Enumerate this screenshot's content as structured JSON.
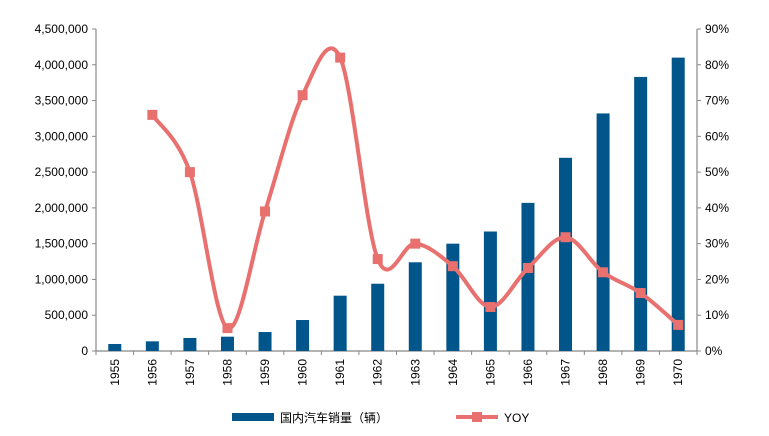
{
  "chart_data": {
    "type": "bar+line",
    "title": "",
    "categories": [
      "1955",
      "1956",
      "1957",
      "1958",
      "1959",
      "1960",
      "1961",
      "1962",
      "1963",
      "1964",
      "1965",
      "1966",
      "1967",
      "1968",
      "1969",
      "1970"
    ],
    "series": [
      {
        "name": "国内汽车销量（辆）",
        "type": "bar",
        "axis": "left",
        "color": "#00558A",
        "values": [
          98000,
          135000,
          182000,
          200000,
          265000,
          433000,
          773000,
          940000,
          1240000,
          1500000,
          1670000,
          2070000,
          2700000,
          3320000,
          3830000,
          4100000
        ]
      },
      {
        "name": "YOY",
        "type": "line",
        "axis": "right",
        "color": "#E8716F",
        "values": [
          null,
          66,
          50,
          6.4,
          39,
          71.5,
          82,
          25.7,
          30,
          23.7,
          12.3,
          23.2,
          31.8,
          22,
          16.2,
          7.3
        ]
      }
    ],
    "left_axis": {
      "ylim": [
        0,
        4500000
      ],
      "ticks": [
        "0",
        "500,000",
        "1,000,000",
        "1,500,000",
        "2,000,000",
        "2,500,000",
        "3,000,000",
        "3,500,000",
        "4,000,000",
        "4,500,000"
      ]
    },
    "right_axis": {
      "ylim": [
        0,
        90
      ],
      "ticks": [
        "0%",
        "10%",
        "20%",
        "30%",
        "40%",
        "50%",
        "60%",
        "70%",
        "80%",
        "90%"
      ]
    },
    "legend_position": "bottom",
    "grid": false
  }
}
